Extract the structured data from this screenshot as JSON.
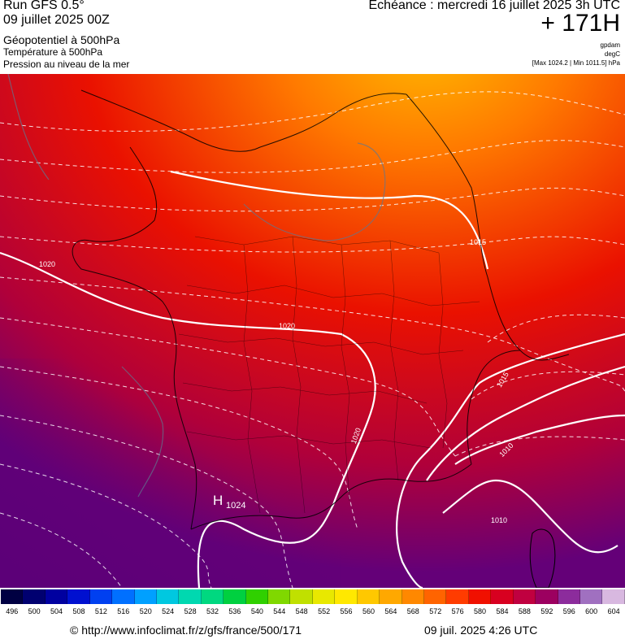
{
  "header": {
    "run": "Run GFS 0.5°",
    "run_date": "09 juillet 2025 00Z",
    "param_geopotential": "Géopotentiel à 500hPa",
    "param_temperature": "Température à 500hPa",
    "param_pressure": "Pression au niveau de la mer",
    "echeance": "Echéance : mercredi 16 juillet 2025 3h UTC",
    "lead_time": "+ 171H",
    "unit_geopotential": "gpdam",
    "unit_temperature": "degC",
    "pressure_minmax": "[Max 1024.2 | Min 1011.5] hPa"
  },
  "map": {
    "region": "France",
    "isobar_labels": [
      "1020",
      "1020",
      "1020",
      "1015",
      "1015",
      "1010",
      "1010"
    ],
    "high_label": "H",
    "high_value": "1024",
    "field_colors": {
      "max_yellow": "#ffbe00",
      "orange": "#ff7a00",
      "red": "#ea1100",
      "crimson": "#b0003a",
      "purple": "#640078"
    },
    "line_colors": {
      "isobar": "#ffffff",
      "temperature": "#ffffff",
      "borders": "#000000"
    }
  },
  "colorscale": {
    "labels": [
      "496",
      "500",
      "504",
      "508",
      "512",
      "516",
      "520",
      "524",
      "528",
      "532",
      "536",
      "540",
      "544",
      "548",
      "552",
      "556",
      "560",
      "564",
      "568",
      "572",
      "576",
      "580",
      "584",
      "588",
      "592",
      "596",
      "600",
      "604"
    ],
    "colors": [
      "#000042",
      "#000070",
      "#0000a0",
      "#0010d0",
      "#0040f0",
      "#0070ff",
      "#00a0ff",
      "#00c8e0",
      "#00d8b0",
      "#00d880",
      "#00d040",
      "#30d000",
      "#80d800",
      "#c0e000",
      "#e8e800",
      "#ffe800",
      "#ffc800",
      "#ffa800",
      "#ff8800",
      "#ff6400",
      "#ff3c00",
      "#f01000",
      "#d80020",
      "#c00040",
      "#9c0060",
      "#8c2c9c",
      "#a070c0",
      "#d8b8e0"
    ]
  },
  "footer": {
    "url": "© http://www.infoclimat.fr/z/gfs/france/500/171",
    "generated": "09 juil. 2025  4:26 UTC"
  }
}
